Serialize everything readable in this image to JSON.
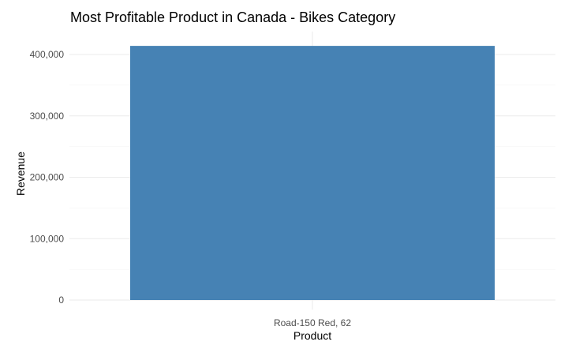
{
  "chart_data": {
    "type": "bar",
    "title": "Most Profitable Product in Canada - Bikes Category",
    "xlabel": "Product",
    "ylabel": "Revenue",
    "categories": [
      "Road-150 Red, 62"
    ],
    "values": [
      414000
    ],
    "ylim": [
      0,
      415000
    ],
    "y_ticks": [
      0,
      100000,
      200000,
      300000,
      400000
    ],
    "y_tick_labels": [
      "0",
      "100,000",
      "200,000",
      "300,000",
      "400,000"
    ],
    "grid": true,
    "legend": "none",
    "colors": {
      "bar": "#4682B4",
      "grid_major": "#ebebeb",
      "grid_minor": "#f3f3f3",
      "text": "#4d4d4d"
    }
  }
}
